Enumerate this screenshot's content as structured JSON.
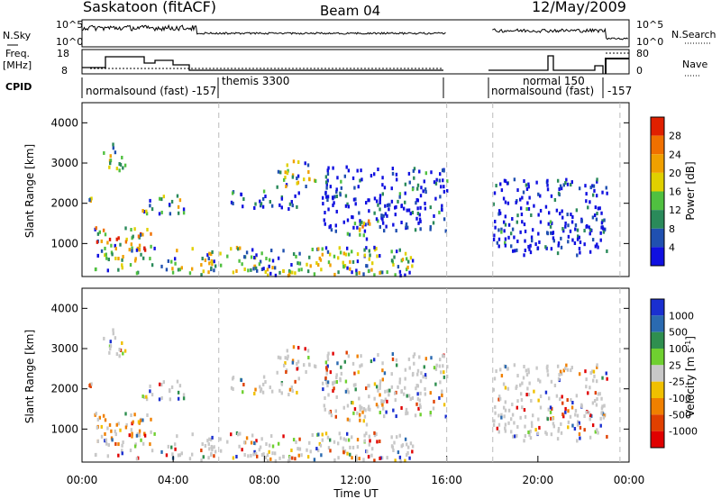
{
  "header": {
    "station": "Saskatoon (fitACF)",
    "beam": "Beam 04",
    "date": "12/May/2009"
  },
  "nsky_panel": {
    "label": "N.Sky",
    "right_label": "N.Search",
    "tick_labels": [
      "10^5",
      "10^0"
    ],
    "right_tick_labels": [
      "10^5",
      "10^0"
    ]
  },
  "freq_panel": {
    "label_line1": "Freq.",
    "label_line2": "[MHz]",
    "right_label": "Nave",
    "left_ticks": [
      "18",
      "8"
    ],
    "right_ticks": [
      "80",
      "0"
    ]
  },
  "cpid": {
    "label": "CPID",
    "segments": [
      {
        "text": "normalsound (fast)  -157"
      },
      {
        "text": "themis 3300"
      },
      {
        "text": "normal 150"
      },
      {
        "text": "normalsound (fast)"
      },
      {
        "text": "-157"
      }
    ]
  },
  "colors": {
    "power": [
      "#1010e0",
      "#2050b0",
      "#2a8a5a",
      "#50c040",
      "#e0d000",
      "#f0a000",
      "#f07000",
      "#e02000"
    ],
    "velocity": [
      "#1a2fd0",
      "#2a6ab0",
      "#2f8f4f",
      "#6fd030",
      "#c8c8c8",
      "#f0c000",
      "#f08000",
      "#e04000",
      "#e00000"
    ]
  },
  "chart_data": [
    {
      "type": "heatmap",
      "title": "Power",
      "ylabel": "Slant Range [km]",
      "xlabel": "",
      "xlim": [
        "00:00",
        "00:00"
      ],
      "ylim": [
        180,
        4500
      ],
      "yticks": [
        "1000",
        "2000",
        "3000",
        "4000"
      ],
      "colorbar_label": "Power [dB]",
      "colorbar_ticks": [
        "4",
        "8",
        "12",
        "16",
        "20",
        "24",
        "28"
      ],
      "blobs": [
        {
          "t": [
            0.0,
            0.5
          ],
          "r": [
            2000,
            2350
          ],
          "level": "mid"
        },
        {
          "t": [
            0.9,
            1.9
          ],
          "r": [
            2800,
            3500
          ],
          "level": "mixed"
        },
        {
          "t": [
            0.3,
            3.0
          ],
          "r": [
            600,
            1400
          ],
          "level": "high"
        },
        {
          "t": [
            2.5,
            4.5
          ],
          "r": [
            1700,
            2200
          ],
          "level": "mixed"
        },
        {
          "t": [
            6.5,
            9.5
          ],
          "r": [
            1850,
            2300
          ],
          "level": "low"
        },
        {
          "t": [
            8.5,
            10.3
          ],
          "r": [
            2400,
            3100
          ],
          "level": "mixed"
        },
        {
          "t": [
            10.5,
            16.0
          ],
          "r": [
            1300,
            2900
          ],
          "level": "low"
        },
        {
          "t": [
            11.5,
            12.6
          ],
          "r": [
            1100,
            1600
          ],
          "level": "high"
        },
        {
          "t": [
            0.5,
            14.5
          ],
          "r": [
            200,
            900
          ],
          "level": "mixed"
        },
        {
          "t": [
            18.0,
            23.0
          ],
          "r": [
            700,
            2600
          ],
          "level": "low"
        }
      ]
    },
    {
      "type": "heatmap",
      "title": "Velocity",
      "ylabel": "Slant Range [km]",
      "xlabel": "Time UT",
      "xlim": [
        "00:00",
        "00:00"
      ],
      "ylim": [
        180,
        4500
      ],
      "yticks": [
        "1000",
        "2000",
        "3000",
        "4000"
      ],
      "xticks": [
        "00:00",
        "04:00",
        "08:00",
        "12:00",
        "16:00",
        "20:00",
        "00:00"
      ],
      "colorbar_label": "Velocity [m s",
      "colorbar_superscript": "-1",
      "colorbar_tail": "]",
      "colorbar_ticks": [
        "1000",
        "500",
        "100",
        "25",
        "-25",
        "-100",
        "-500",
        "-1000"
      ]
    }
  ]
}
